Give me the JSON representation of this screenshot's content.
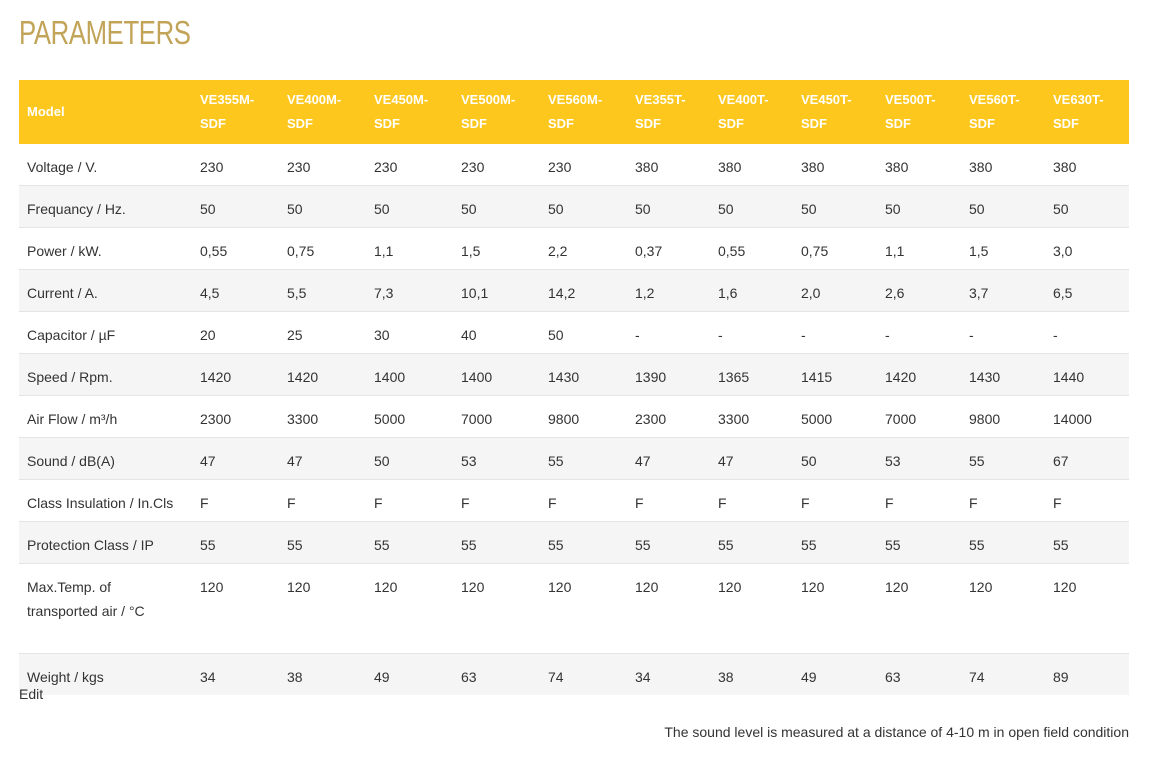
{
  "page": {
    "title": "PARAMETERS",
    "edit_label": "Edit",
    "footnote": "The sound level is measured at a distance of 4-10 m in open field condition"
  },
  "colors": {
    "title": "#c2a459",
    "header_bg": "#fdc71d",
    "header_text": "#ffffff",
    "row_alt_bg": "#f5f5f5"
  },
  "table": {
    "headers": [
      "Model",
      "VE355M-SDF",
      "VE400M-SDF",
      "VE450M-SDF",
      "VE500M-SDF",
      "VE560M-SDF",
      "VE355T-SDF",
      "VE400T-SDF",
      "VE450T-SDF",
      "VE500T-SDF",
      "VE560T-SDF",
      "VE630T-SDF"
    ],
    "rows": [
      [
        "Voltage / V.",
        "230",
        "230",
        "230",
        "230",
        "230",
        "380",
        "380",
        "380",
        "380",
        "380",
        "380"
      ],
      [
        "Frequancy / Hz.",
        "50",
        "50",
        "50",
        "50",
        "50",
        "50",
        "50",
        "50",
        "50",
        "50",
        "50"
      ],
      [
        "Power / kW.",
        "0,55",
        "0,75",
        "1,1",
        "1,5",
        "2,2",
        "0,37",
        "0,55",
        "0,75",
        "1,1",
        "1,5",
        "3,0"
      ],
      [
        "Current / A.",
        "4,5",
        "5,5",
        "7,3",
        "10,1",
        "14,2",
        "1,2",
        "1,6",
        "2,0",
        "2,6",
        "3,7",
        "6,5"
      ],
      [
        "Capacitor / µF",
        "20",
        "25",
        "30",
        "40",
        "50",
        "-",
        "-",
        "-",
        "-",
        "-",
        "-"
      ],
      [
        "Speed / Rpm.",
        "1420",
        "1420",
        "1400",
        "1400",
        "1430",
        "1390",
        "1365",
        "1415",
        "1420",
        "1430",
        "1440"
      ],
      [
        "Air Flow / m³/h",
        "2300",
        "3300",
        "5000",
        "7000",
        "9800",
        "2300",
        "3300",
        "5000",
        "7000",
        "9800",
        "14000"
      ],
      [
        "Sound / dB(A)",
        "47",
        "47",
        "50",
        "53",
        "55",
        "47",
        "47",
        "50",
        "53",
        "55",
        "67"
      ],
      [
        "Class Insulation / In.Cls",
        "F",
        "F",
        "F",
        "F",
        "F",
        "F",
        "F",
        "F",
        "F",
        "F",
        "F"
      ],
      [
        "Protection Class / IP",
        "55",
        "55",
        "55",
        "55",
        "55",
        "55",
        "55",
        "55",
        "55",
        "55",
        "55"
      ],
      [
        "Max.Temp. of transported air / °C",
        "120",
        "120",
        "120",
        "120",
        "120",
        "120",
        "120",
        "120",
        "120",
        "120",
        "120"
      ],
      [
        "Weight / kgs",
        "34",
        "38",
        "49",
        "63",
        "74",
        "34",
        "38",
        "49",
        "63",
        "74",
        "89"
      ]
    ]
  }
}
